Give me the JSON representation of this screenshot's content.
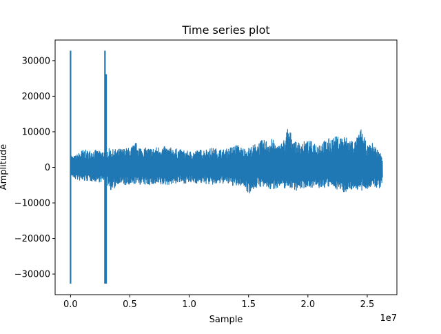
{
  "chart_data": {
    "type": "line",
    "title": "Time series plot",
    "xlabel": "Sample",
    "ylabel": "Amplitude",
    "x_offset_text": "1e7",
    "xlim": [
      -0.13,
      2.75
    ],
    "ylim": [
      -35800,
      35800
    ],
    "x_ticks": [
      0.0,
      0.5,
      1.0,
      1.5,
      2.0,
      2.5
    ],
    "x_tick_labels": [
      "0.0",
      "0.5",
      "1.0",
      "1.5",
      "2.0",
      "2.5"
    ],
    "y_ticks": [
      30000,
      20000,
      10000,
      0,
      -10000,
      -20000,
      -30000
    ],
    "y_tick_labels": [
      "30000",
      "20000",
      "10000",
      "0",
      "−10000",
      "−20000",
      "−30000"
    ],
    "grid": false,
    "series": [
      {
        "color": "#1f77b4",
        "x_range": [
          0,
          2.63
        ],
        "envelope": {
          "x": [
            0.0,
            0.02,
            0.05,
            0.1,
            0.15,
            0.2,
            0.25,
            0.29,
            0.31,
            0.35,
            0.4,
            0.5,
            0.55,
            0.6,
            0.7,
            0.75,
            0.8,
            0.9,
            1.0,
            1.1,
            1.2,
            1.3,
            1.4,
            1.45,
            1.5,
            1.55,
            1.6,
            1.7,
            1.75,
            1.8,
            1.83,
            1.9,
            2.0,
            2.1,
            2.2,
            2.3,
            2.4,
            2.45,
            2.5,
            2.55,
            2.6,
            2.63
          ],
          "upper": [
            4000,
            3000,
            3500,
            5000,
            4800,
            5000,
            4500,
            5000,
            5500,
            5000,
            5200,
            5500,
            7000,
            5500,
            5500,
            6000,
            5800,
            5200,
            4500,
            5000,
            5500,
            5000,
            6500,
            5500,
            5500,
            6500,
            7500,
            8000,
            6000,
            8000,
            11500,
            7000,
            7500,
            7000,
            8500,
            9000,
            7500,
            11000,
            6000,
            7000,
            4500,
            3500
          ],
          "lower": [
            -2000,
            -3000,
            -3500,
            -4000,
            -3800,
            -4000,
            -4200,
            -4000,
            -5000,
            -7000,
            -4500,
            -5500,
            -4500,
            -5000,
            -5000,
            -5200,
            -5000,
            -4500,
            -4500,
            -4500,
            -5000,
            -4500,
            -5500,
            -5000,
            -7500,
            -6000,
            -5500,
            -6500,
            -5500,
            -6000,
            -5500,
            -6500,
            -5500,
            -6000,
            -5500,
            -7000,
            -6000,
            -7000,
            -6000,
            -5500,
            -6000,
            -4500
          ]
        },
        "spikes": [
          {
            "x": 0.0,
            "y_max": 32800,
            "y_min": -32700
          },
          {
            "x": 0.29,
            "y_max": 32800,
            "y_min": -32700
          },
          {
            "x": 0.3,
            "y_max": 26200,
            "y_min": -32700
          }
        ]
      }
    ]
  }
}
